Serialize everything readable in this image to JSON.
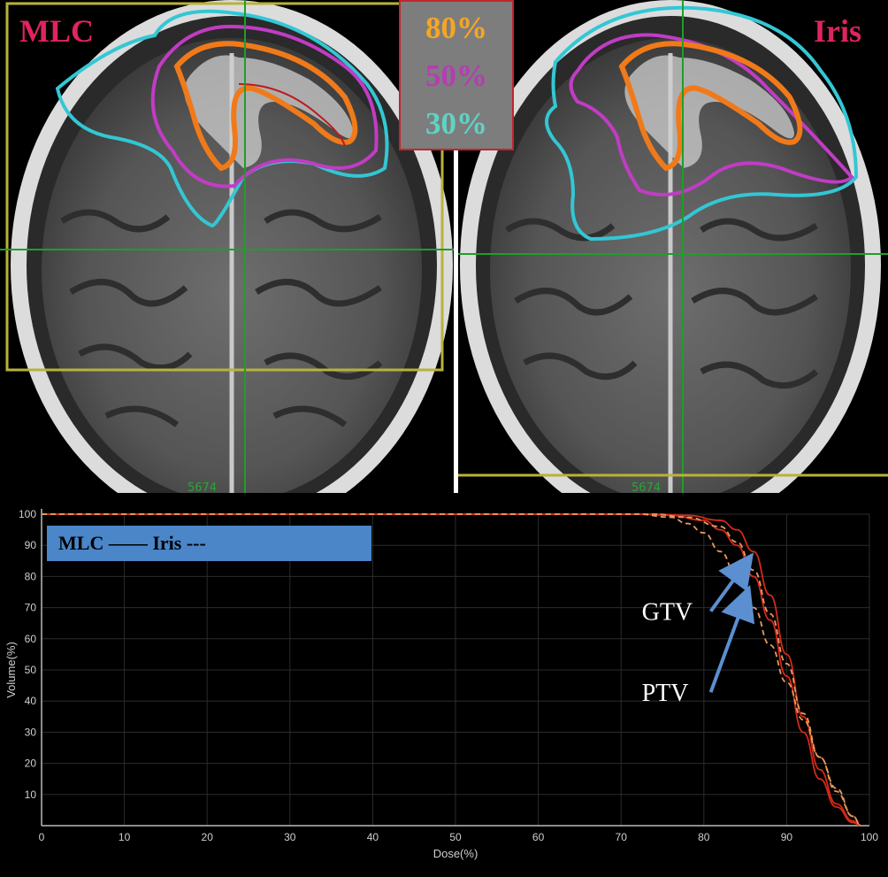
{
  "images": {
    "left": {
      "title": "MLC",
      "scan_label": "5674"
    },
    "right": {
      "title": "Iris",
      "scan_label": "5674"
    }
  },
  "isodose_legend": [
    {
      "label": "80%",
      "color": "#f5a623"
    },
    {
      "label": "50%",
      "color": "#b43db4"
    },
    {
      "label": "30%",
      "color": "#5fd3c4"
    }
  ],
  "colors": {
    "isodose_80": "#f07a1a",
    "isodose_50": "#c13cc4",
    "isodose_30": "#33c7d4",
    "crosshair": "#1f9e2a",
    "frame": "#b8b23a",
    "title": "#e0245e",
    "legend_banner": "#4a86c8",
    "arrow": "#5b8fd0",
    "curve_mlc": "#d42a1a",
    "curve_iris": "#e89a5a"
  },
  "chart_data": {
    "type": "line",
    "xlabel": "Dose(%)",
    "ylabel": "Volume(%)",
    "xlim": [
      0,
      100
    ],
    "ylim": [
      0,
      100
    ],
    "xticks": [
      "0",
      "10",
      "20",
      "30",
      "40",
      "50",
      "60",
      "70",
      "80",
      "90",
      "100"
    ],
    "yticks": [
      "10",
      "20",
      "30",
      "40",
      "50",
      "60",
      "70",
      "80",
      "90",
      "100"
    ],
    "grid": true,
    "legend_text": "MLC —— Iris ---",
    "annotations": [
      {
        "text": "GTV",
        "x": 72.5,
        "y": 66,
        "arrow_to": [
          85,
          84
        ]
      },
      {
        "text": "PTV",
        "x": 72.5,
        "y": 40,
        "arrow_to": [
          85,
          73
        ]
      }
    ],
    "series": [
      {
        "name": "GTV MLC",
        "style": "solid",
        "x": [
          0,
          74,
          78,
          82,
          84,
          86,
          88,
          90,
          92,
          94,
          96,
          98,
          99
        ],
        "y": [
          100,
          100,
          99.6,
          98,
          95,
          88,
          74,
          55,
          35,
          18,
          7,
          1.5,
          0
        ]
      },
      {
        "name": "PTV MLC",
        "style": "solid",
        "x": [
          0,
          72,
          76,
          80,
          82,
          84,
          86,
          88,
          90,
          92,
          94,
          96,
          98,
          99
        ],
        "y": [
          100,
          100,
          99.6,
          98,
          95,
          90,
          80,
          66,
          48,
          30,
          15,
          6,
          1,
          0
        ]
      },
      {
        "name": "GTV Iris",
        "style": "dashed",
        "x": [
          0,
          74,
          78,
          82,
          84,
          86,
          88,
          90,
          92,
          94,
          96,
          98,
          99
        ],
        "y": [
          100,
          100,
          99,
          96,
          91,
          82,
          68,
          52,
          36,
          22,
          11,
          3,
          0
        ]
      },
      {
        "name": "PTV Iris",
        "style": "dashed",
        "x": [
          0,
          72,
          76,
          78,
          80,
          82,
          84,
          86,
          88,
          90,
          92,
          94,
          96,
          98,
          99
        ],
        "y": [
          100,
          100,
          99,
          97,
          94,
          88,
          80,
          70,
          58,
          46,
          34,
          22,
          12,
          3,
          0
        ]
      }
    ]
  }
}
